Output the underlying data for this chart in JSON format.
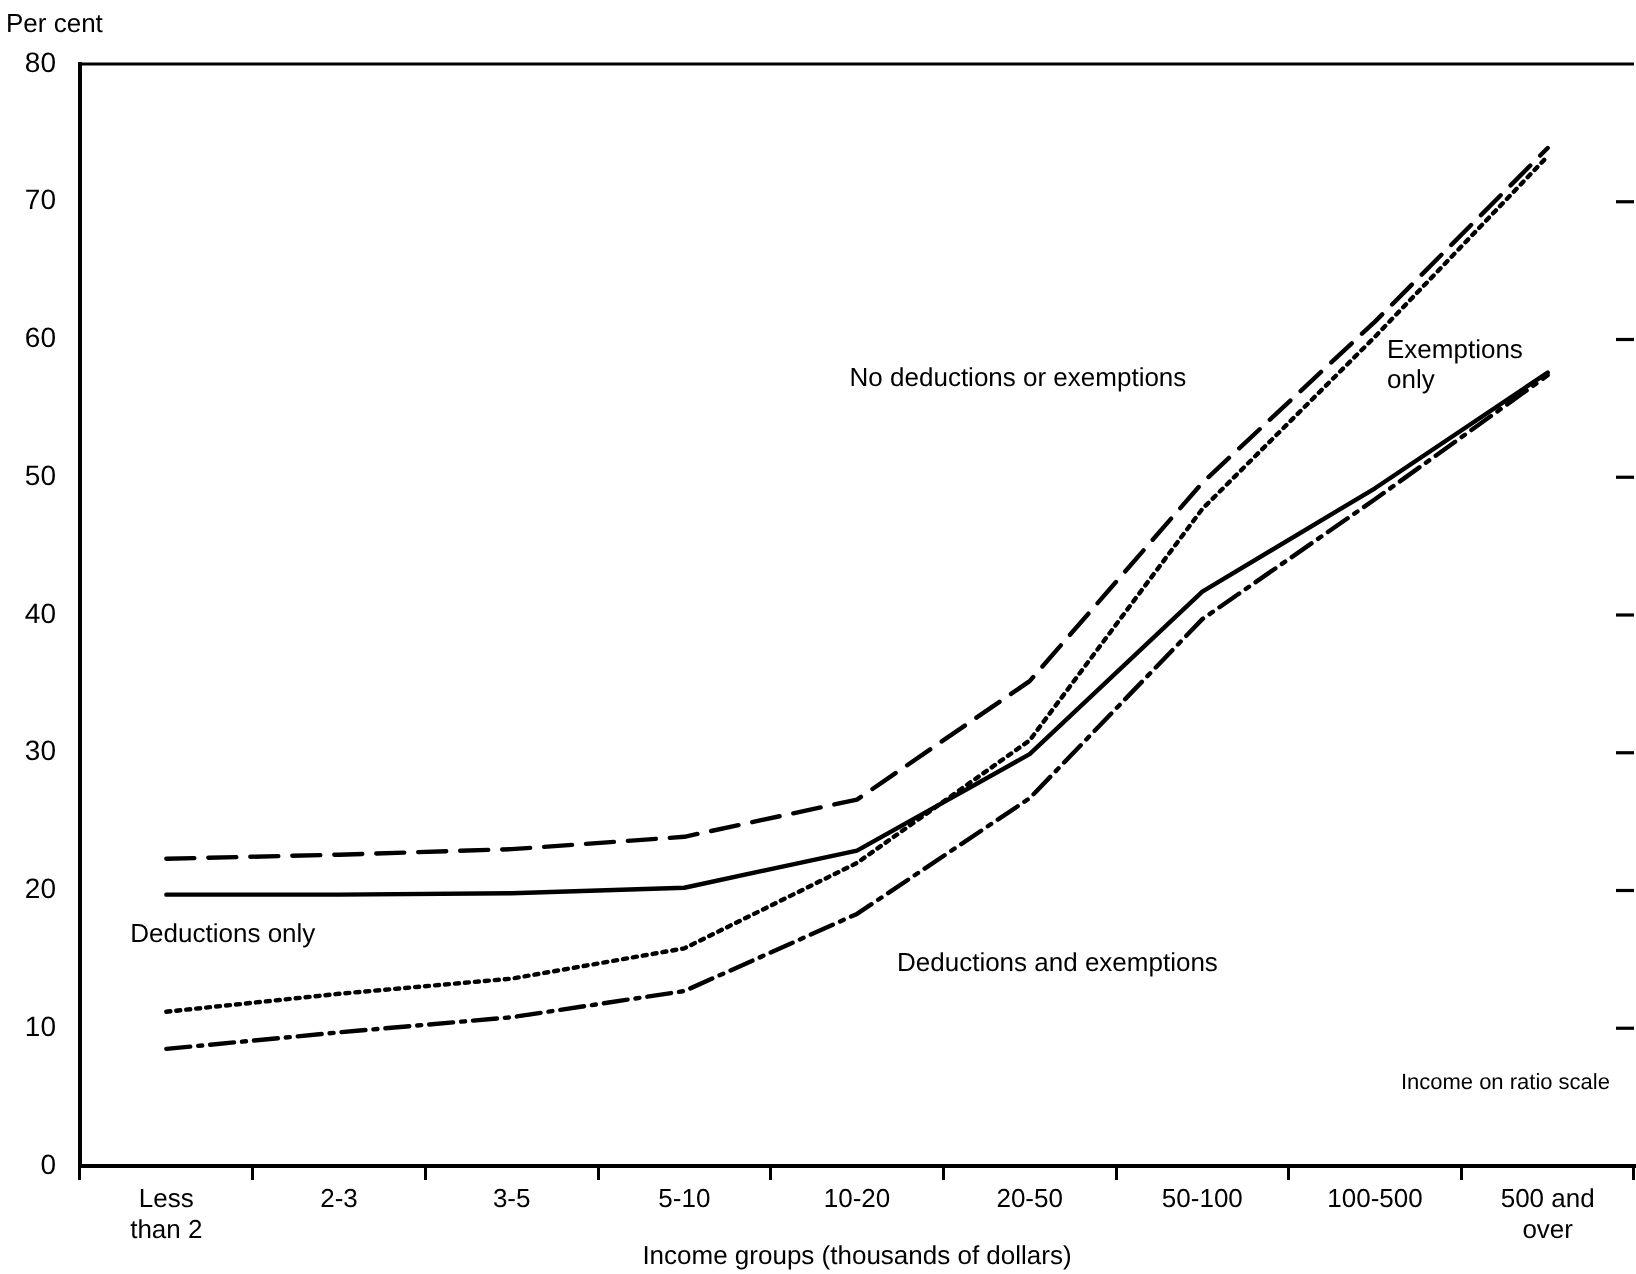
{
  "chart_data": {
    "type": "line",
    "xlabel": "Income groups (thousands of dollars)",
    "ylabel": "Per cent",
    "marker": "none",
    "annotations": [
      "Income on ratio scale"
    ],
    "ylim": [
      0,
      80
    ],
    "yticks": [
      0,
      10,
      20,
      30,
      40,
      50,
      60,
      70,
      80
    ],
    "categories": [
      "Less than 2",
      "2-3",
      "3-5",
      "5-10",
      "10-20",
      "20-50",
      "50-100",
      "100-500",
      "500 and over"
    ],
    "series": [
      {
        "name": "No deductions or exemptions",
        "color": "#000000",
        "line_style": "dashed",
        "values": [
          22.3,
          22.6,
          23,
          23.9,
          26.6,
          35.2,
          49.6,
          61.3,
          73.9
        ]
      },
      {
        "name": "Exemptions only",
        "color": "#000000",
        "line_style": "dotted",
        "values": [
          11.2,
          12.5,
          13.6,
          15.8,
          22,
          30.9,
          47.7,
          60.2,
          73.3
        ]
      },
      {
        "name": "Deductions only",
        "color": "#000000",
        "line_style": "solid",
        "values": [
          19.7,
          19.7,
          19.8,
          20.2,
          22.9,
          29.9,
          41.7,
          49.2,
          57.6
        ]
      },
      {
        "name": "Deductions and exemptions",
        "color": "#000000",
        "line_style": "dashdot",
        "values": [
          8.5,
          9.7,
          10.8,
          12.7,
          18.3,
          26.7,
          39.7,
          48.4,
          57.4
        ]
      }
    ]
  }
}
